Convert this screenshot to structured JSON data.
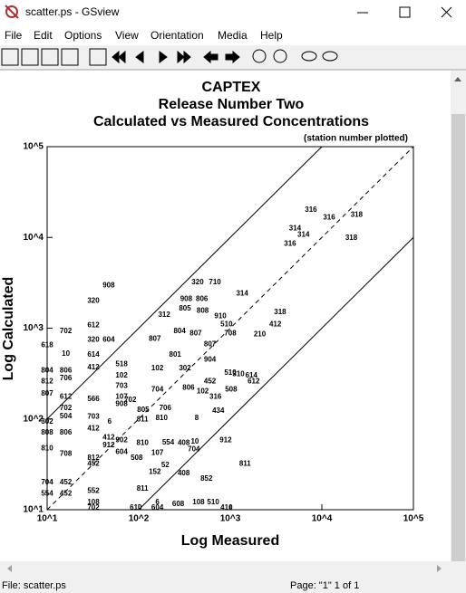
{
  "window": {
    "title": "scatter.ps - GSview",
    "menu": [
      "File",
      "Edit",
      "Options",
      "View",
      "Orientation",
      "Media",
      "Help"
    ]
  },
  "status": {
    "file": "File: scatter.ps",
    "page": "Page: \"1\"  1 of 1"
  },
  "chart_data": {
    "type": "scatter",
    "title": "CAPTEX",
    "subtitle": "Release Number Two",
    "subtitle_2": "Calculated vs Measured Concentrations",
    "annotation": "(station number plotted)",
    "x_label": "Log Measured",
    "y_label": "Log Calculated",
    "xscale": "log",
    "yscale": "log",
    "xlim": [
      10,
      100000
    ],
    "ylim": [
      10,
      100000
    ],
    "xticks": [
      {
        "value": 10,
        "label": "10^1"
      },
      {
        "value": 100,
        "label": "10^2"
      },
      {
        "value": 1000,
        "label": "10^3"
      },
      {
        "value": 10000,
        "label": "10^4"
      },
      {
        "value": 100000,
        "label": "10^5"
      }
    ],
    "yticks": [
      {
        "value": 10,
        "label": "10^1"
      },
      {
        "value": 100,
        "label": "10^2"
      },
      {
        "value": 1000,
        "label": "10^3"
      },
      {
        "value": 10000,
        "label": "10^4"
      },
      {
        "value": 100000,
        "label": "10^5"
      }
    ],
    "reference_lines": [
      {
        "factor": 10,
        "style": "solid"
      },
      {
        "factor": 1,
        "style": "dashed"
      },
      {
        "factor": 0.1,
        "style": "solid"
      }
    ],
    "series": [
      {
        "color": "#000000",
        "point_labels": [
          "316",
          "316",
          "318",
          "314",
          "314",
          "316",
          "318",
          "908",
          "320",
          "320",
          "710",
          "314",
          "908",
          "806",
          "312",
          "805",
          "808",
          "910",
          "318",
          "412",
          "702",
          "612",
          "320",
          "604",
          "807",
          "804",
          "807",
          "708",
          "510",
          "210",
          "614",
          "10",
          "412",
          "806",
          "706",
          "518",
          "102",
          "102",
          "807",
          "801",
          "302",
          "904",
          "510",
          "310",
          "614",
          "612",
          "452",
          "508",
          "316",
          "612",
          "566",
          "107",
          "702",
          "703",
          "704",
          "806",
          "102",
          "908",
          "805",
          "706",
          "434",
          "702",
          "504",
          "703",
          "6",
          "811",
          "810",
          "8",
          "412",
          "806",
          "412",
          "902",
          "912",
          "810",
          "554",
          "408",
          "10",
          "704",
          "912",
          "604",
          "107",
          "508",
          "708",
          "812",
          "452",
          "52",
          "152",
          "408",
          "852",
          "811",
          "452",
          "552",
          "452",
          "811",
          "108",
          "510",
          "108",
          "608",
          "410",
          "702",
          "610",
          "604",
          "6",
          "618",
          "804",
          "812",
          "807",
          "302",
          "808",
          "810",
          "704",
          "554"
        ],
        "x": [
          7600,
          12000,
          24000,
          5100,
          6300,
          4500,
          21000,
          47,
          32,
          440,
          680,
          1350,
          330,
          490,
          190,
          320,
          500,
          780,
          3500,
          3100,
          16,
          32,
          32,
          47,
          150,
          280,
          420,
          1000,
          910,
          2100,
          32,
          16,
          32,
          16,
          16,
          65,
          65,
          160,
          600,
          250,
          320,
          600,
          1000,
          1230,
          1700,
          1800,
          600,
          1020,
          690,
          16,
          32,
          65,
          81,
          65,
          160,
          350,
          500,
          65,
          112,
          195,
          740,
          16,
          16,
          32,
          48,
          110,
          178,
          430,
          32,
          16,
          47,
          65,
          47,
          110,
          210,
          310,
          410,
          400,
          890,
          65,
          160,
          95,
          16,
          32,
          32,
          195,
          150,
          310,
          550,
          1450,
          16,
          32,
          16,
          110,
          32,
          650,
          450,
          270,
          910,
          32,
          93,
          160,
          160,
          10,
          10,
          10,
          10,
          10,
          10,
          10,
          10,
          10
        ],
        "values": [
          20000,
          16600,
          17800,
          12600,
          10700,
          8500,
          9800,
          2950,
          2000,
          3200,
          3200,
          2400,
          2100,
          2100,
          1400,
          1650,
          1550,
          1350,
          1500,
          1100,
          930,
          1070,
          740,
          740,
          760,
          930,
          870,
          870,
          1100,
          850,
          510,
          520,
          370,
          340,
          280,
          400,
          300,
          360,
          660,
          510,
          360,
          450,
          320,
          310,
          300,
          260,
          260,
          210,
          174,
          174,
          165,
          174,
          162,
          230,
          210,
          220,
          200,
          145,
          126,
          132,
          123,
          132,
          107,
          105,
          93,
          98,
          102,
          102,
          78,
          71,
          62,
          58,
          51,
          54,
          55,
          54,
          56,
          46,
          58,
          43,
          42,
          37,
          41,
          37,
          32,
          31,
          26,
          25,
          22,
          32,
          20,
          16,
          15,
          17,
          12,
          12,
          12,
          11.5,
          10.5,
          10.5,
          10.5,
          10.5,
          12,
          650,
          340,
          260,
          190,
          93,
          71,
          47,
          20,
          15
        ]
      }
    ]
  }
}
